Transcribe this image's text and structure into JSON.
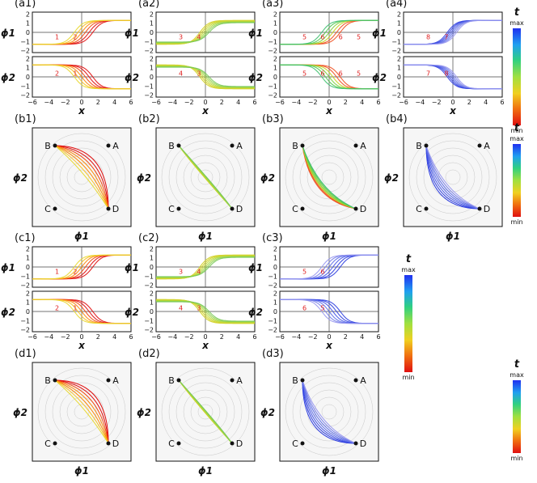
{
  "figure": {
    "colormap": {
      "title": "t",
      "max_label": "max",
      "min_label": "min"
    },
    "axis_labels": {
      "x": "x",
      "phi1": "ϕ1",
      "phi2": "ϕ2"
    },
    "point_labels": [
      "A",
      "B",
      "C",
      "D"
    ],
    "profile_panels": [
      {
        "label": "(a1)",
        "colormap": "warm",
        "ann_phi1": [
          "1",
          "2"
        ],
        "ann_phi2": [
          "2",
          "1"
        ]
      },
      {
        "label": "(a2)",
        "colormap": "yellowgreen",
        "ann_phi1": [
          "3",
          "4"
        ],
        "ann_phi2": [
          "4",
          "3"
        ]
      },
      {
        "label": "(a3)",
        "colormap": "green",
        "ann_phi1": [
          "5",
          "6",
          "6",
          "5"
        ],
        "ann_phi2": [
          "5",
          "6",
          "6",
          "5"
        ]
      },
      {
        "label": "(a4)",
        "colormap": "cool",
        "ann_phi1": [
          "8",
          "7"
        ],
        "ann_phi2": [
          "7",
          "8"
        ]
      },
      {
        "label": "(c1)",
        "colormap": "warm",
        "ann_phi1": [
          "1",
          "2"
        ],
        "ann_phi2": [
          "2",
          "1"
        ]
      },
      {
        "label": "(c2)",
        "colormap": "yellowgreen",
        "ann_phi1": [
          "3",
          "4"
        ],
        "ann_phi2": [
          "4",
          "3"
        ]
      },
      {
        "label": "(c3)",
        "colormap": "cool",
        "ann_phi1": [
          "5",
          "6"
        ],
        "ann_phi2": [
          "6",
          "5"
        ]
      }
    ],
    "path_panels": [
      {
        "label": "(b1)",
        "colormap": "warm"
      },
      {
        "label": "(b2)",
        "colormap": "yellowgreen"
      },
      {
        "label": "(b3)",
        "colormap": "green"
      },
      {
        "label": "(b4)",
        "colormap": "cool"
      },
      {
        "label": "(d1)",
        "colormap": "warm"
      },
      {
        "label": "(d2)",
        "colormap": "yellowgreen"
      },
      {
        "label": "(d3)",
        "colormap": "cool"
      }
    ]
  },
  "chart_data": {
    "type": "line",
    "title": "",
    "xlabel": "x",
    "ylabel_top": "ϕ1",
    "ylabel_bottom": "ϕ2",
    "xlim": [
      -6,
      6
    ],
    "ylim": [
      -2,
      2
    ],
    "x_ticks": [
      "−6",
      "−4",
      "−2",
      "0",
      "2",
      "4",
      "6"
    ],
    "y_ticks": [
      "2",
      "1",
      "0",
      "−1",
      "−2"
    ],
    "path_xlabel": "ϕ1",
    "path_ylabel": "ϕ2",
    "minima": [
      "A",
      "B",
      "C",
      "D"
    ]
  }
}
